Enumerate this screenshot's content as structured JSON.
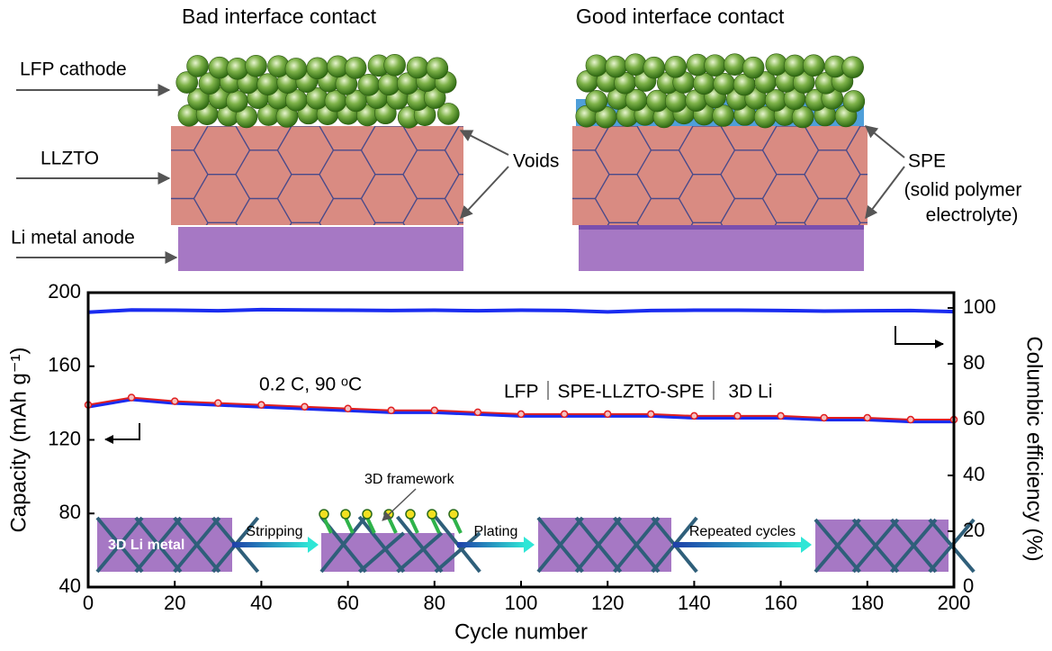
{
  "schematic": {
    "left_title": "Bad  interface contact",
    "right_title": "Good  interface contact",
    "labels": [
      "LFP cathode",
      "LLZTO",
      "Li metal anode"
    ],
    "voids": "Voids",
    "spe": [
      "SPE",
      "(solid polymer",
      "electrolyte)"
    ]
  },
  "chart_data": {
    "type": "line",
    "xlabel": "Cycle number",
    "ylabel": "Capacity (mAh g⁻¹)",
    "y2label": "Columbic efficiency (%)",
    "annotations": [
      "0.2 C, 90 ᵒC",
      "LFP｜SPE-LLZTO-SPE｜ 3D Li"
    ],
    "inset": [
      "3D framework",
      "3D  Li   metal",
      "Stripping",
      "Plating",
      "Repeated cycles"
    ],
    "x": [
      0,
      10,
      20,
      30,
      40,
      50,
      60,
      70,
      80,
      90,
      100,
      110,
      120,
      130,
      140,
      150,
      160,
      170,
      180,
      190,
      200
    ],
    "series": [
      {
        "color": "#1a2cf0",
        "marker": "line",
        "values": [
          138,
          142,
          140,
          139,
          138,
          137,
          136,
          135,
          135,
          134,
          133,
          133,
          133,
          133,
          132,
          132,
          132,
          131,
          131,
          130,
          130
        ]
      },
      {
        "color": "#e02020",
        "marker": "circle",
        "values": [
          139,
          143,
          141,
          140,
          139,
          138,
          137,
          136,
          136,
          135,
          134,
          134,
          134,
          134,
          133,
          133,
          133,
          132,
          132,
          131,
          131
        ]
      },
      {
        "color": "#1a2cf0",
        "marker": "line",
        "axis": "y2",
        "values": [
          98.5,
          99.3,
          99.2,
          99,
          99.4,
          99.3,
          99.2,
          99.1,
          99.2,
          99,
          99.2,
          99.1,
          98.6,
          99.1,
          99.2,
          99.2,
          99.1,
          98.9,
          99,
          99.1,
          98.7
        ]
      }
    ],
    "xlim": [
      0,
      200
    ],
    "xticks": [
      0,
      20,
      40,
      60,
      80,
      100,
      120,
      140,
      160,
      180,
      200
    ],
    "ylim": [
      40,
      200
    ],
    "yticks": [
      40,
      80,
      120,
      160,
      200
    ],
    "y2lim": [
      0,
      105.5
    ],
    "y2ticks": [
      0,
      20,
      40,
      60,
      80,
      100
    ]
  }
}
